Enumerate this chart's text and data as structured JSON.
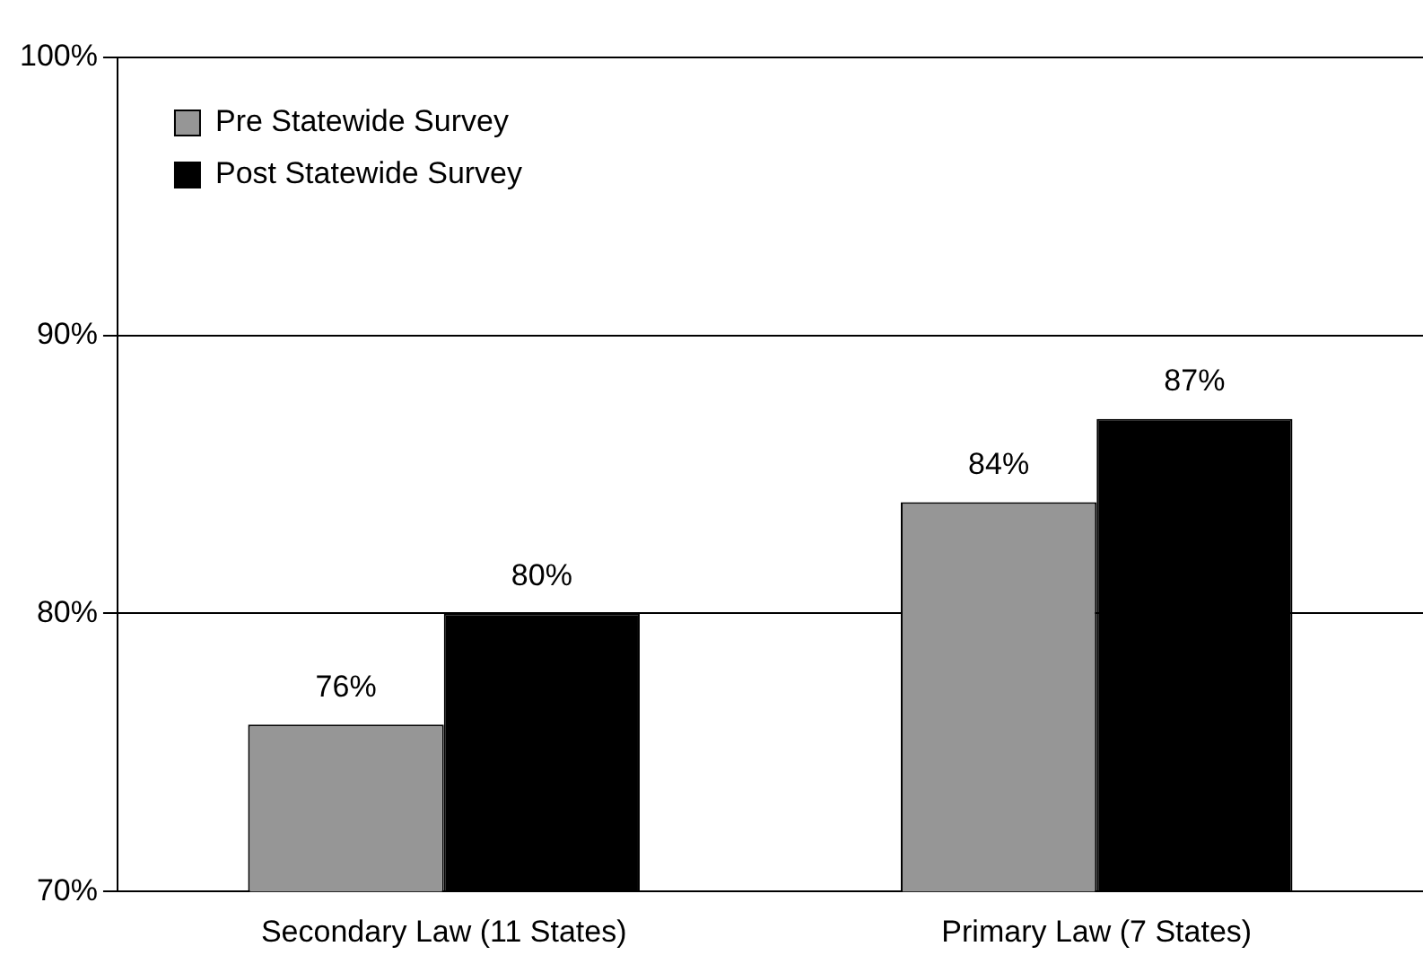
{
  "chart_data": {
    "type": "bar",
    "categories": [
      "Secondary Law (11 States)",
      "Primary Law (7 States)"
    ],
    "series": [
      {
        "name": "Pre Statewide Survey",
        "color": "#969696",
        "values": [
          76,
          84
        ],
        "value_labels": [
          "76%",
          "84%"
        ]
      },
      {
        "name": "Post Statewide Survey",
        "color": "#000000",
        "values": [
          80,
          87
        ],
        "value_labels": [
          "80%",
          "87%"
        ]
      }
    ],
    "ylim": [
      70,
      100
    ],
    "yticks": [
      {
        "value": 70,
        "label": "70%"
      },
      {
        "value": 80,
        "label": "80%"
      },
      {
        "value": 90,
        "label": "90%"
      },
      {
        "value": 100,
        "label": "100%"
      }
    ],
    "grid": "y",
    "legend": "top left"
  }
}
